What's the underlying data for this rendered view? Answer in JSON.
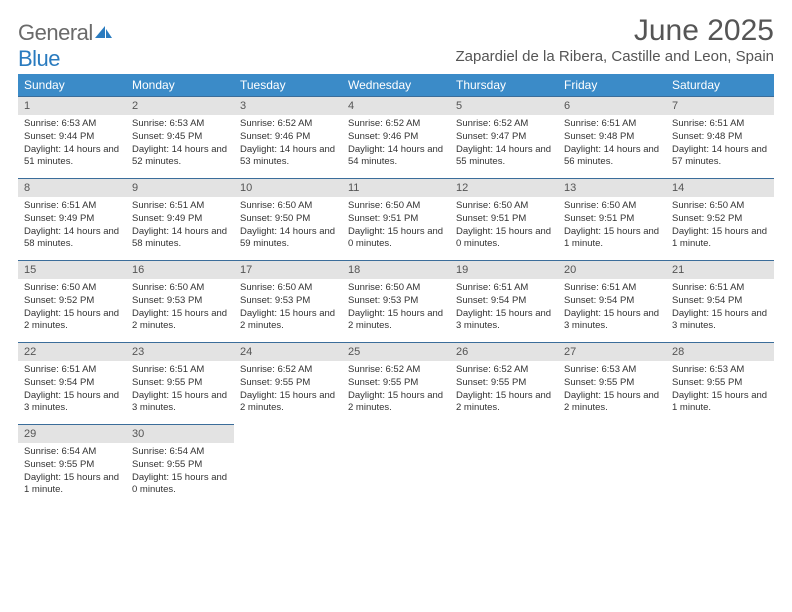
{
  "logo": {
    "text1": "General",
    "text2": "Blue"
  },
  "title": "June 2025",
  "subtitle": "Zapardiel de la Ribera, Castille and Leon, Spain",
  "colors": {
    "header_bg": "#3b8bc8",
    "header_text": "#ffffff",
    "daynum_bg": "#e3e3e3",
    "border": "#3b6d9a",
    "logo_gray": "#6a6a6a",
    "logo_blue": "#2a7bbf"
  },
  "weekdays": [
    "Sunday",
    "Monday",
    "Tuesday",
    "Wednesday",
    "Thursday",
    "Friday",
    "Saturday"
  ],
  "weeks": [
    [
      {
        "n": "1",
        "sr": "6:53 AM",
        "ss": "9:44 PM",
        "dl": "14 hours and 51 minutes."
      },
      {
        "n": "2",
        "sr": "6:53 AM",
        "ss": "9:45 PM",
        "dl": "14 hours and 52 minutes."
      },
      {
        "n": "3",
        "sr": "6:52 AM",
        "ss": "9:46 PM",
        "dl": "14 hours and 53 minutes."
      },
      {
        "n": "4",
        "sr": "6:52 AM",
        "ss": "9:46 PM",
        "dl": "14 hours and 54 minutes."
      },
      {
        "n": "5",
        "sr": "6:52 AM",
        "ss": "9:47 PM",
        "dl": "14 hours and 55 minutes."
      },
      {
        "n": "6",
        "sr": "6:51 AM",
        "ss": "9:48 PM",
        "dl": "14 hours and 56 minutes."
      },
      {
        "n": "7",
        "sr": "6:51 AM",
        "ss": "9:48 PM",
        "dl": "14 hours and 57 minutes."
      }
    ],
    [
      {
        "n": "8",
        "sr": "6:51 AM",
        "ss": "9:49 PM",
        "dl": "14 hours and 58 minutes."
      },
      {
        "n": "9",
        "sr": "6:51 AM",
        "ss": "9:49 PM",
        "dl": "14 hours and 58 minutes."
      },
      {
        "n": "10",
        "sr": "6:50 AM",
        "ss": "9:50 PM",
        "dl": "14 hours and 59 minutes."
      },
      {
        "n": "11",
        "sr": "6:50 AM",
        "ss": "9:51 PM",
        "dl": "15 hours and 0 minutes."
      },
      {
        "n": "12",
        "sr": "6:50 AM",
        "ss": "9:51 PM",
        "dl": "15 hours and 0 minutes."
      },
      {
        "n": "13",
        "sr": "6:50 AM",
        "ss": "9:51 PM",
        "dl": "15 hours and 1 minute."
      },
      {
        "n": "14",
        "sr": "6:50 AM",
        "ss": "9:52 PM",
        "dl": "15 hours and 1 minute."
      }
    ],
    [
      {
        "n": "15",
        "sr": "6:50 AM",
        "ss": "9:52 PM",
        "dl": "15 hours and 2 minutes."
      },
      {
        "n": "16",
        "sr": "6:50 AM",
        "ss": "9:53 PM",
        "dl": "15 hours and 2 minutes."
      },
      {
        "n": "17",
        "sr": "6:50 AM",
        "ss": "9:53 PM",
        "dl": "15 hours and 2 minutes."
      },
      {
        "n": "18",
        "sr": "6:50 AM",
        "ss": "9:53 PM",
        "dl": "15 hours and 2 minutes."
      },
      {
        "n": "19",
        "sr": "6:51 AM",
        "ss": "9:54 PM",
        "dl": "15 hours and 3 minutes."
      },
      {
        "n": "20",
        "sr": "6:51 AM",
        "ss": "9:54 PM",
        "dl": "15 hours and 3 minutes."
      },
      {
        "n": "21",
        "sr": "6:51 AM",
        "ss": "9:54 PM",
        "dl": "15 hours and 3 minutes."
      }
    ],
    [
      {
        "n": "22",
        "sr": "6:51 AM",
        "ss": "9:54 PM",
        "dl": "15 hours and 3 minutes."
      },
      {
        "n": "23",
        "sr": "6:51 AM",
        "ss": "9:55 PM",
        "dl": "15 hours and 3 minutes."
      },
      {
        "n": "24",
        "sr": "6:52 AM",
        "ss": "9:55 PM",
        "dl": "15 hours and 2 minutes."
      },
      {
        "n": "25",
        "sr": "6:52 AM",
        "ss": "9:55 PM",
        "dl": "15 hours and 2 minutes."
      },
      {
        "n": "26",
        "sr": "6:52 AM",
        "ss": "9:55 PM",
        "dl": "15 hours and 2 minutes."
      },
      {
        "n": "27",
        "sr": "6:53 AM",
        "ss": "9:55 PM",
        "dl": "15 hours and 2 minutes."
      },
      {
        "n": "28",
        "sr": "6:53 AM",
        "ss": "9:55 PM",
        "dl": "15 hours and 1 minute."
      }
    ],
    [
      {
        "n": "29",
        "sr": "6:54 AM",
        "ss": "9:55 PM",
        "dl": "15 hours and 1 minute."
      },
      {
        "n": "30",
        "sr": "6:54 AM",
        "ss": "9:55 PM",
        "dl": "15 hours and 0 minutes."
      },
      null,
      null,
      null,
      null,
      null
    ]
  ],
  "labels": {
    "sunrise": "Sunrise:",
    "sunset": "Sunset:",
    "daylight": "Daylight:"
  }
}
